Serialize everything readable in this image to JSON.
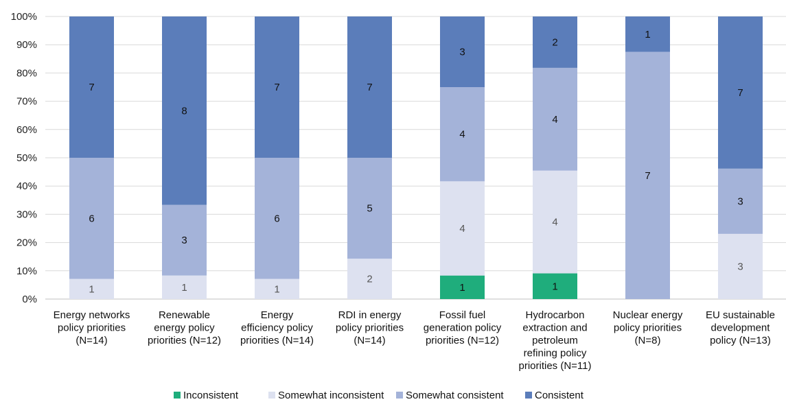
{
  "chart_data": {
    "type": "bar",
    "stacked": true,
    "normalized": true,
    "categories": [
      [
        "Energy networks",
        "policy priorities",
        "(N=14)"
      ],
      [
        "Renewable",
        "energy policy",
        "priorities (N=12)"
      ],
      [
        "Energy",
        "efficiency policy",
        "priorities (N=14)"
      ],
      [
        "RDI in energy",
        "policy priorities",
        "(N=14)"
      ],
      [
        "Fossil fuel",
        "generation policy",
        "priorities (N=12)"
      ],
      [
        "Hydrocarbon",
        "extraction and",
        "petroleum",
        "refining policy",
        "priorities (N=11)"
      ],
      [
        "Nuclear energy",
        "policy priorities",
        "(N=8)"
      ],
      [
        "EU sustainable",
        "development",
        "policy (N=13)"
      ]
    ],
    "series": [
      {
        "name": "Inconsistent",
        "color": "#1fad7c",
        "label_color": "#111111",
        "values": [
          0,
          0,
          0,
          0,
          1,
          1,
          0,
          0
        ]
      },
      {
        "name": "Somewhat inconsistent",
        "color": "#dde1f0",
        "label_color": "#555555",
        "values": [
          1,
          1,
          1,
          2,
          4,
          4,
          0,
          3
        ]
      },
      {
        "name": "Somewhat consistent",
        "color": "#a4b3d9",
        "label_color": "#111111",
        "values": [
          6,
          3,
          6,
          5,
          4,
          4,
          7,
          3
        ]
      },
      {
        "name": "Consistent",
        "color": "#5b7dba",
        "label_color": "#111111",
        "values": [
          7,
          8,
          7,
          7,
          3,
          2,
          1,
          7
        ]
      }
    ],
    "ylim": [
      0,
      100
    ],
    "ytick_labels": [
      "0%",
      "10%",
      "20%",
      "30%",
      "40%",
      "50%",
      "60%",
      "70%",
      "80%",
      "90%",
      "100%"
    ],
    "grid": true,
    "legend_position": "bottom",
    "title": "",
    "xlabel": "",
    "ylabel": ""
  }
}
